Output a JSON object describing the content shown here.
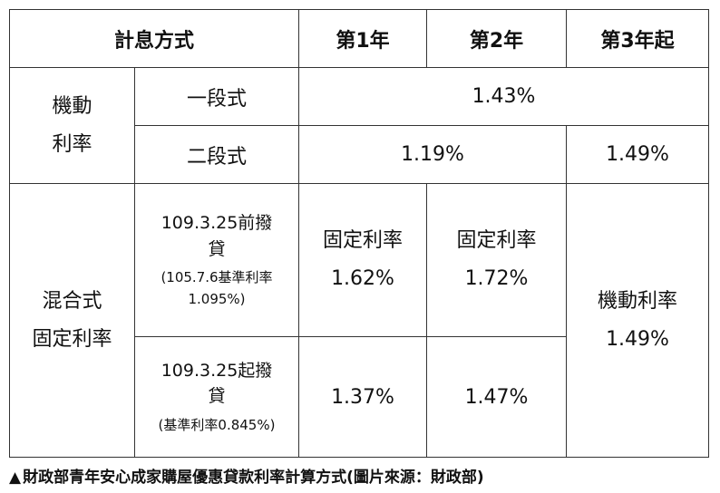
{
  "header": {
    "method": "計息方式",
    "year1": "第1年",
    "year2": "第2年",
    "year3": "第3年起"
  },
  "floating": {
    "group_line1": "機動",
    "group_line2": "利率",
    "one_stage": {
      "label": "一段式",
      "rate": "1.43%"
    },
    "two_stage": {
      "label": "二段式",
      "rate_y1_y2": "1.19%",
      "rate_y3": "1.49%"
    }
  },
  "mixed": {
    "group_line1": "混合式",
    "group_line2": "固定利率",
    "before": {
      "label_line1": "109.3.25前撥",
      "label_line2": "貸",
      "note_line1": "(105.7.6基準利率",
      "note_line2": "1.095%)",
      "y1_type": "固定利率",
      "y1_rate": "1.62%",
      "y2_type": "固定利率",
      "y2_rate": "1.72%"
    },
    "after": {
      "label_line1": "109.3.25起撥",
      "label_line2": "貸",
      "note": "(基準利率0.845%)",
      "y1_rate": "1.37%",
      "y2_rate": "1.47%"
    },
    "y3_type": "機動利率",
    "y3_rate": "1.49%"
  },
  "caption": {
    "marker": "▲",
    "text": "財政部青年安心成家購屋優惠貸款利率計算方式(圖片來源：財政部)"
  }
}
